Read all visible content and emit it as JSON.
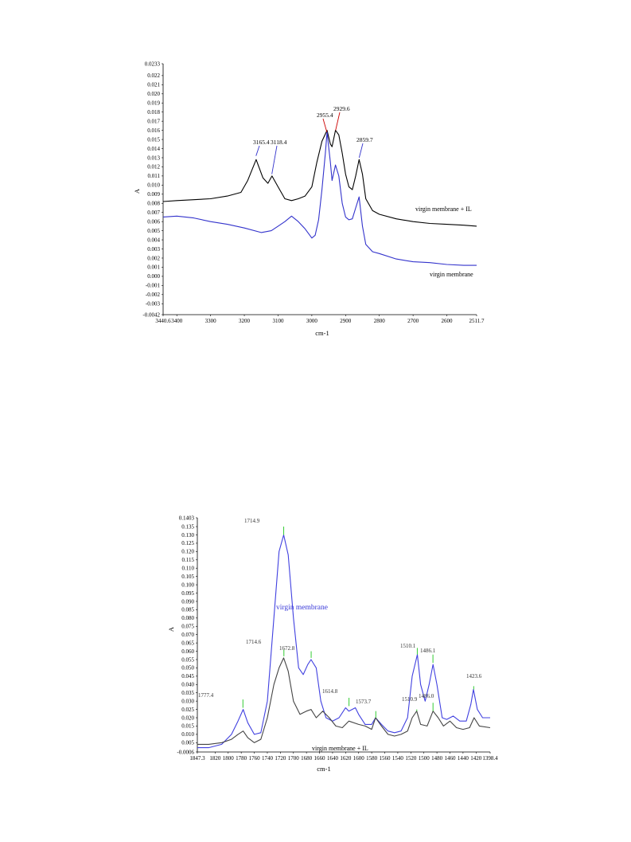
{
  "chart_data": [
    {
      "type": "line",
      "title": "",
      "xlabel": "cm-1",
      "ylabel": "A",
      "xlim": [
        3440.6,
        2511.7
      ],
      "ylim": [
        -0.0042,
        0.0233
      ],
      "x_ticks": [
        "3440.6",
        "3400",
        "3300",
        "3200",
        "3100",
        "3000",
        "2900",
        "2800",
        "2700",
        "2600",
        "2511.7"
      ],
      "y_ticks": [
        "0.0233",
        "0.022",
        "0.021",
        "0.020",
        "0.019",
        "0.018",
        "0.017",
        "0.016",
        "0.015",
        "0.014",
        "0.013",
        "0.012",
        "0.011",
        "0.010",
        "0.009",
        "0.008",
        "0.007",
        "0.006",
        "0.005",
        "0.004",
        "0.003",
        "0.002",
        "0.001",
        "0.000",
        "-0.001",
        "-0.002",
        "-0.003",
        "-0.0042"
      ],
      "series": [
        {
          "name": "virgin membrane + IL",
          "color": "#000000",
          "x": [
            3440.6,
            3400,
            3350,
            3300,
            3250,
            3210,
            3190,
            3165,
            3145,
            3130,
            3118,
            3100,
            3080,
            3060,
            3040,
            3020,
            3000,
            2985,
            2970,
            2955,
            2945,
            2940,
            2930,
            2920,
            2910,
            2900,
            2890,
            2880,
            2870,
            2860,
            2850,
            2840,
            2820,
            2800,
            2750,
            2700,
            2650,
            2600,
            2550,
            2511.7
          ],
          "y": [
            0.0082,
            0.0083,
            0.0084,
            0.0085,
            0.0088,
            0.0092,
            0.0105,
            0.0128,
            0.0108,
            0.0102,
            0.011,
            0.0098,
            0.0085,
            0.0083,
            0.0085,
            0.0088,
            0.0098,
            0.0125,
            0.0148,
            0.016,
            0.0145,
            0.0142,
            0.016,
            0.0155,
            0.0135,
            0.0112,
            0.0098,
            0.0095,
            0.011,
            0.0128,
            0.0112,
            0.0085,
            0.0072,
            0.0068,
            0.0063,
            0.006,
            0.0058,
            0.0057,
            0.0056,
            0.0055
          ]
        },
        {
          "name": "virgin membrane",
          "color": "#3333cc",
          "x": [
            3440.6,
            3400,
            3350,
            3300,
            3250,
            3200,
            3150,
            3120,
            3100,
            3080,
            3060,
            3040,
            3020,
            3000,
            2990,
            2980,
            2970,
            2960,
            2955,
            2945,
            2940,
            2930,
            2920,
            2910,
            2900,
            2890,
            2880,
            2870,
            2860,
            2850,
            2840,
            2820,
            2800,
            2750,
            2700,
            2650,
            2600,
            2550,
            2511.7
          ],
          "y": [
            0.0065,
            0.0066,
            0.0064,
            0.006,
            0.0057,
            0.0053,
            0.0048,
            0.005,
            0.0055,
            0.006,
            0.0066,
            0.006,
            0.0052,
            0.0042,
            0.0045,
            0.0062,
            0.0095,
            0.0135,
            0.0158,
            0.0125,
            0.0105,
            0.0122,
            0.011,
            0.008,
            0.0065,
            0.0062,
            0.0063,
            0.0075,
            0.0087,
            0.0055,
            0.0035,
            0.0027,
            0.0025,
            0.0019,
            0.0016,
            0.0015,
            0.0013,
            0.0012,
            0.0012
          ]
        }
      ],
      "annotations": [
        {
          "label": "3165.4",
          "color": "#3333cc"
        },
        {
          "label": "3118.4",
          "color": "#3333cc"
        },
        {
          "label": "2955.4",
          "color": "#cc0000"
        },
        {
          "label": "2929.6",
          "color": "#cc0000"
        },
        {
          "label": "2859.7",
          "color": "#3333cc"
        }
      ],
      "legend_labels": [
        "virgin membrane + IL",
        "virgin membrane"
      ]
    },
    {
      "type": "line",
      "title": "",
      "xlabel": "cm-1",
      "ylabel": "A",
      "xlim": [
        1847.3,
        1398.4
      ],
      "ylim": [
        -0.0006,
        0.1403
      ],
      "x_ticks": [
        "1847.3",
        "1820",
        "1800",
        "1780",
        "1760",
        "1740",
        "1720",
        "1700",
        "1680",
        "1660",
        "1640",
        "1620",
        "1600",
        "1580",
        "1560",
        "1540",
        "1520",
        "1500",
        "1480",
        "1460",
        "1440",
        "1420",
        "1398.4"
      ],
      "y_ticks": [
        "0.1403",
        "0.135",
        "0.130",
        "0.125",
        "0.120",
        "0.115",
        "0.110",
        "0.105",
        "0.100",
        "0.095",
        "0.090",
        "0.085",
        "0.080",
        "0.075",
        "0.070",
        "0.065",
        "0.060",
        "0.055",
        "0.050",
        "0.045",
        "0.040",
        "0.035",
        "0.030",
        "0.025",
        "0.020",
        "0.015",
        "0.010",
        "0.005",
        "-0.0006"
      ],
      "series": [
        {
          "name": "virgin membrane",
          "color": "#4040e0",
          "x": [
            1847.3,
            1830,
            1810,
            1795,
            1785,
            1777,
            1770,
            1760,
            1750,
            1740,
            1730,
            1722,
            1715,
            1708,
            1700,
            1692,
            1685,
            1678,
            1673,
            1665,
            1658,
            1650,
            1640,
            1630,
            1620,
            1615,
            1605,
            1600,
            1590,
            1580,
            1574,
            1565,
            1555,
            1545,
            1535,
            1525,
            1518,
            1510,
            1505,
            1498,
            1492,
            1486,
            1480,
            1472,
            1465,
            1455,
            1445,
            1435,
            1428,
            1424,
            1418,
            1410,
            1398.4
          ],
          "y": [
            0.002,
            0.002,
            0.004,
            0.01,
            0.018,
            0.025,
            0.017,
            0.01,
            0.011,
            0.03,
            0.08,
            0.12,
            0.13,
            0.118,
            0.08,
            0.05,
            0.046,
            0.052,
            0.055,
            0.05,
            0.03,
            0.02,
            0.018,
            0.02,
            0.026,
            0.024,
            0.026,
            0.022,
            0.016,
            0.016,
            0.02,
            0.016,
            0.012,
            0.011,
            0.012,
            0.02,
            0.045,
            0.058,
            0.04,
            0.03,
            0.04,
            0.052,
            0.04,
            0.02,
            0.019,
            0.021,
            0.018,
            0.018,
            0.028,
            0.037,
            0.025,
            0.02,
            0.02
          ]
        },
        {
          "name": "virgin membrane + IL",
          "color": "#444444",
          "x": [
            1847.3,
            1830,
            1810,
            1795,
            1785,
            1777,
            1770,
            1760,
            1750,
            1740,
            1730,
            1722,
            1715,
            1708,
            1700,
            1690,
            1680,
            1673,
            1665,
            1655,
            1645,
            1635,
            1625,
            1615,
            1600,
            1590,
            1580,
            1574,
            1565,
            1555,
            1545,
            1535,
            1525,
            1518,
            1511,
            1505,
            1495,
            1486,
            1478,
            1470,
            1460,
            1450,
            1440,
            1430,
            1423,
            1415,
            1398.4
          ],
          "y": [
            0.004,
            0.004,
            0.005,
            0.007,
            0.01,
            0.012,
            0.008,
            0.005,
            0.007,
            0.02,
            0.04,
            0.05,
            0.056,
            0.048,
            0.03,
            0.022,
            0.024,
            0.025,
            0.02,
            0.024,
            0.02,
            0.015,
            0.014,
            0.018,
            0.016,
            0.015,
            0.013,
            0.02,
            0.015,
            0.01,
            0.009,
            0.01,
            0.012,
            0.02,
            0.024,
            0.016,
            0.015,
            0.024,
            0.02,
            0.015,
            0.018,
            0.014,
            0.013,
            0.014,
            0.02,
            0.015,
            0.014
          ]
        }
      ],
      "annotations": [
        {
          "label": "1777.4",
          "color": "#33cc33"
        },
        {
          "label": "1714.9",
          "color": "#33cc33"
        },
        {
          "label": "1714.6",
          "color": "#33cc33"
        },
        {
          "label": "1672.8",
          "color": "#33cc33"
        },
        {
          "label": "1614.8",
          "color": "#33cc33"
        },
        {
          "label": "1573.7",
          "color": "#33cc33"
        },
        {
          "label": "1510.1",
          "color": "#33cc33"
        },
        {
          "label": "1510.9",
          "color": "#33cc33"
        },
        {
          "label": "1486.1",
          "color": "#33cc33"
        },
        {
          "label": "1486.0",
          "color": "#33cc33"
        },
        {
          "label": "1423.6",
          "color": "#33cc33"
        }
      ],
      "legend_labels": [
        "virgin membrane",
        "virgin membrane + IL"
      ]
    }
  ]
}
